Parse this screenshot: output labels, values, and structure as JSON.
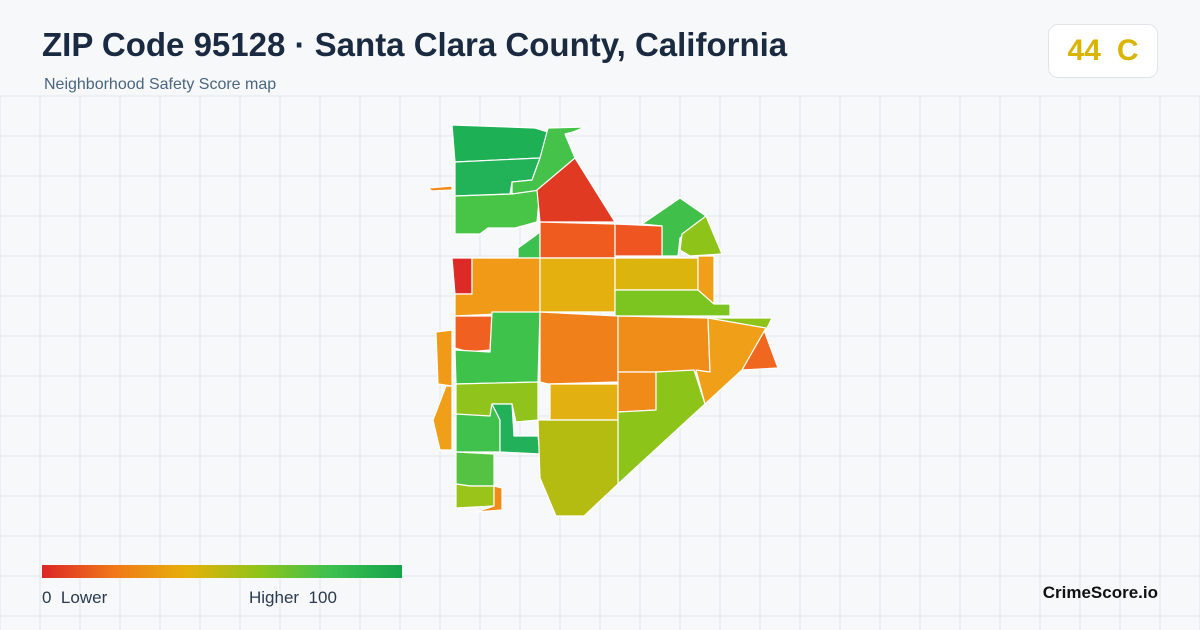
{
  "header": {
    "title": "ZIP Code 95128 · Santa Clara County, California",
    "subtitle": "Neighborhood Safety Score map"
  },
  "score": {
    "value": "44",
    "grade": "C",
    "color": "#d9b400"
  },
  "legend": {
    "low_value": "0",
    "low_label": "Lower",
    "high_label": "Higher",
    "high_value": "100",
    "gradient_colors": [
      "#dc2626",
      "#f07818",
      "#e6b00a",
      "#90c418",
      "#3cc050",
      "#16a34a"
    ]
  },
  "brand": "CrimeScore.io",
  "map": {
    "background": "#f6f8fa",
    "grid_color": "#e3e9ee",
    "region_stroke": "#ffffff",
    "regions": [
      {
        "name": "region-northwest-1",
        "color": "#1db055"
      },
      {
        "name": "region-northwest-2",
        "color": "#22b257"
      },
      {
        "name": "region-north-sliver",
        "color": "#45c24a"
      },
      {
        "name": "region-west-3",
        "color": "#48c446"
      },
      {
        "name": "region-west-green-small",
        "color": "#3cc050"
      },
      {
        "name": "region-northwest-dash",
        "color": "#f08a1a"
      },
      {
        "name": "region-north-red",
        "color": "#e03a22"
      },
      {
        "name": "region-northeast-green",
        "color": "#40c04a"
      },
      {
        "name": "region-northeast-lime",
        "color": "#8ec41a"
      },
      {
        "name": "region-center-north-1",
        "color": "#ef5a1e"
      },
      {
        "name": "region-center-north-2",
        "color": "#ee5520"
      },
      {
        "name": "region-west-red",
        "color": "#dc2a26"
      },
      {
        "name": "region-west-orange",
        "color": "#f09a18"
      },
      {
        "name": "region-center-yellow",
        "color": "#e3b010"
      },
      {
        "name": "region-east-yellow",
        "color": "#dcb40e"
      },
      {
        "name": "region-east-orange-strip",
        "color": "#f0a018"
      },
      {
        "name": "region-east-green-band",
        "color": "#7cc420"
      },
      {
        "name": "region-west-small-red",
        "color": "#f06020"
      },
      {
        "name": "region-west-green-mid",
        "color": "#3ec24c"
      },
      {
        "name": "region-west-edge-orange",
        "color": "#f09a18"
      },
      {
        "name": "region-center-orange",
        "color": "#f0801a"
      },
      {
        "name": "region-east-orange",
        "color": "#f08c18"
      },
      {
        "name": "region-east-lime-sliver",
        "color": "#8ec41a"
      },
      {
        "name": "region-east-tip",
        "color": "#f06820"
      },
      {
        "name": "region-east-big-orange",
        "color": "#f0a018"
      },
      {
        "name": "region-southwest-lime",
        "color": "#90c41c"
      },
      {
        "name": "region-center-south-yellow",
        "color": "#e2b010"
      },
      {
        "name": "region-south-orange",
        "color": "#f08a18"
      },
      {
        "name": "region-southeast-lime",
        "color": "#8cc41a"
      },
      {
        "name": "region-west-edge-orange-2",
        "color": "#f0a018"
      },
      {
        "name": "region-southwest-green",
        "color": "#40c04c"
      },
      {
        "name": "region-southwest-dark-green",
        "color": "#22b05a"
      },
      {
        "name": "region-south-olive",
        "color": "#b4bc12"
      },
      {
        "name": "region-southwest-green-2",
        "color": "#56c244"
      },
      {
        "name": "region-southwest-lime-2",
        "color": "#9ac41a"
      },
      {
        "name": "region-south-tiny-orange",
        "color": "#f08a18"
      }
    ]
  }
}
